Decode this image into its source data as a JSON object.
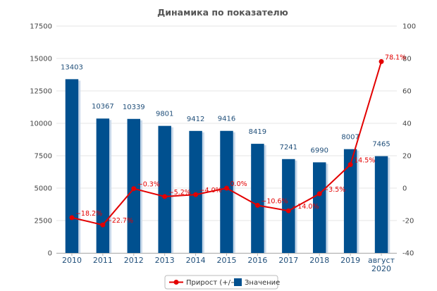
{
  "chart_data": {
    "type": "bar",
    "title": "Динамика по показателю",
    "categories": [
      "2010",
      "2011",
      "2012",
      "2013",
      "2014",
      "2015",
      "2016",
      "2017",
      "2018",
      "2019",
      "август\n2020"
    ],
    "series": [
      {
        "name": "Значение",
        "type": "bar",
        "axis": "left",
        "values": [
          13403,
          10367,
          10339,
          9801,
          9412,
          9416,
          8419,
          7241,
          6990,
          8007,
          7465
        ],
        "labels": [
          "13403",
          "10367",
          "10339",
          "9801",
          "9412",
          "9416",
          "8419",
          "7241",
          "6990",
          "8007",
          "7465"
        ]
      },
      {
        "name": "Прирост (+/−)",
        "type": "line",
        "axis": "right",
        "values": [
          -18.2,
          -22.7,
          -0.3,
          -5.2,
          -4.0,
          0.0,
          -10.6,
          -14.0,
          -3.5,
          14.5,
          78.1
        ],
        "labels": [
          "−18.2%",
          "−22.7%",
          "−0.3%",
          "−5.2%",
          "−4.0%",
          "0.0%",
          "−10.6%",
          "−14.0%",
          "−3.5%",
          "14.5%",
          "78.1%"
        ]
      }
    ],
    "y_left": {
      "min": 0,
      "max": 17500,
      "ticks": [
        "0",
        "2500",
        "5000",
        "7500",
        "10000",
        "12500",
        "15000",
        "17500"
      ]
    },
    "y_right": {
      "min": -40,
      "max": 100,
      "ticks": [
        "-40",
        "-20",
        "0",
        "20",
        "40",
        "60",
        "80",
        "100"
      ]
    },
    "grid": true,
    "legend_position": "bottom-center",
    "colors": {
      "bar": "#00508f",
      "bar_shadow": "#c9d9ea",
      "line": "#e30000",
      "grid": "#e6e6e6"
    }
  }
}
